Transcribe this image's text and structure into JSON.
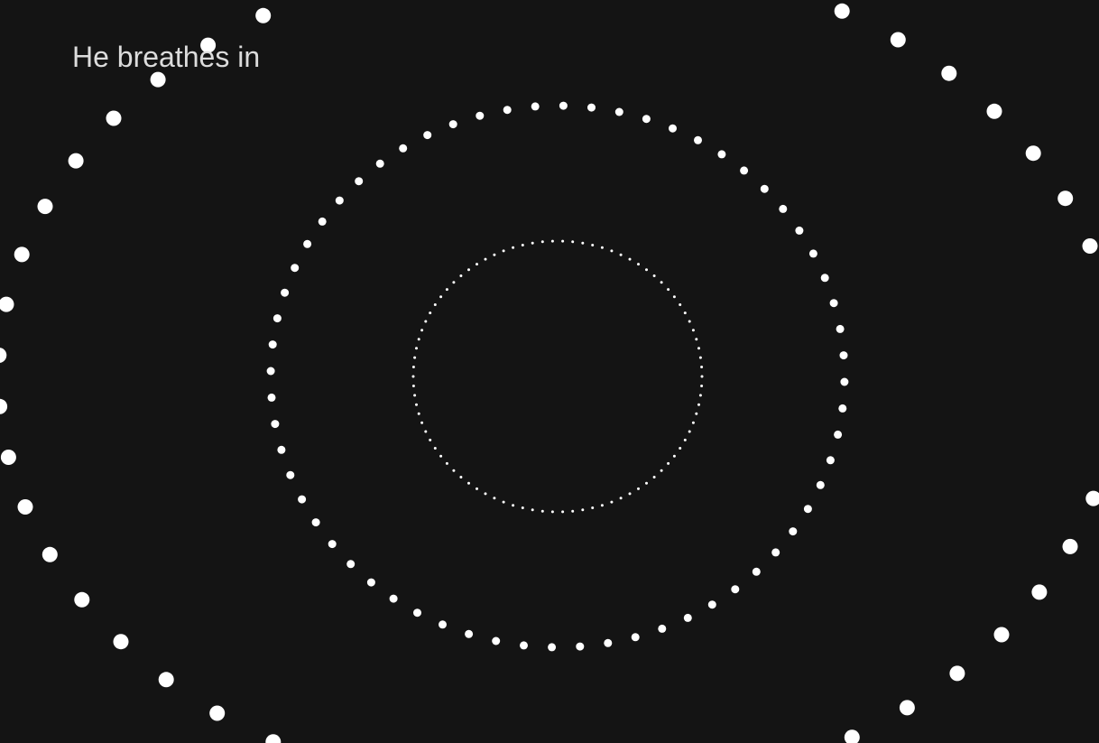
{
  "caption": "He breathes in",
  "colors": {
    "background": "#141414",
    "dots": "#ffffff",
    "caption": "#dcdcdc"
  },
  "rings": [
    {
      "name": "inner-ring",
      "dot_count": 90
    },
    {
      "name": "middle-ring",
      "dot_count": 64
    },
    {
      "name": "outer-ring",
      "dot_count": 52
    }
  ]
}
